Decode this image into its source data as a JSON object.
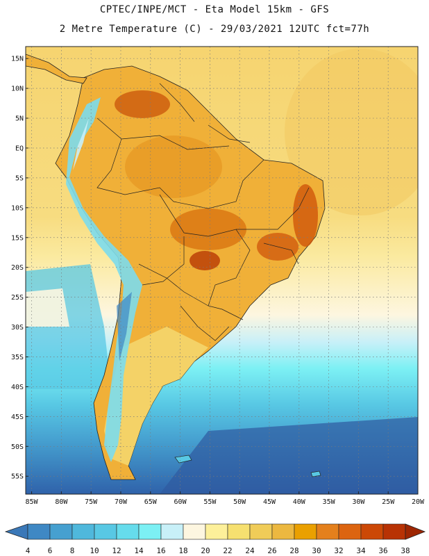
{
  "header": {
    "line1": "CPTEC/INPE/MCT -  Eta Model 15km - GFS",
    "line2": "2 Metre Temperature (C) - 29/03/2021 12UTC fct=77h"
  },
  "axes": {
    "lat_labels": [
      "15N",
      "10N",
      "5N",
      "EQ",
      "5S",
      "10S",
      "15S",
      "20S",
      "25S",
      "30S",
      "35S",
      "40S",
      "45S",
      "50S",
      "55S"
    ],
    "lat_values": [
      15,
      10,
      5,
      0,
      -5,
      -10,
      -15,
      -20,
      -25,
      -30,
      -35,
      -40,
      -45,
      -50,
      -55
    ],
    "lon_labels": [
      "85W",
      "80W",
      "75W",
      "70W",
      "65W",
      "60W",
      "55W",
      "50W",
      "45W",
      "40W",
      "35W",
      "30W",
      "25W",
      "20W"
    ],
    "lon_values": [
      -85,
      -80,
      -75,
      -70,
      -65,
      -60,
      -55,
      -50,
      -45,
      -40,
      -35,
      -30,
      -25,
      -20
    ],
    "lat_range": [
      -58,
      17
    ],
    "lon_range": [
      -86,
      -20
    ]
  },
  "colorbar": {
    "labels": [
      "4",
      "6",
      "8",
      "10",
      "12",
      "14",
      "16",
      "18",
      "20",
      "22",
      "24",
      "26",
      "28",
      "30",
      "32",
      "34",
      "36",
      "38"
    ],
    "colors": [
      "#3a78b8",
      "#3f88c4",
      "#46a0d0",
      "#4fb8dc",
      "#58c8e4",
      "#66dcec",
      "#7cf0f4",
      "#c8f0f8",
      "#fdf6e0",
      "#fdf09a",
      "#f6e070",
      "#f0cc58",
      "#ecb840",
      "#eaa000",
      "#e4801c",
      "#dc6410",
      "#cc4806",
      "#b83204",
      "#9e2602"
    ]
  }
}
